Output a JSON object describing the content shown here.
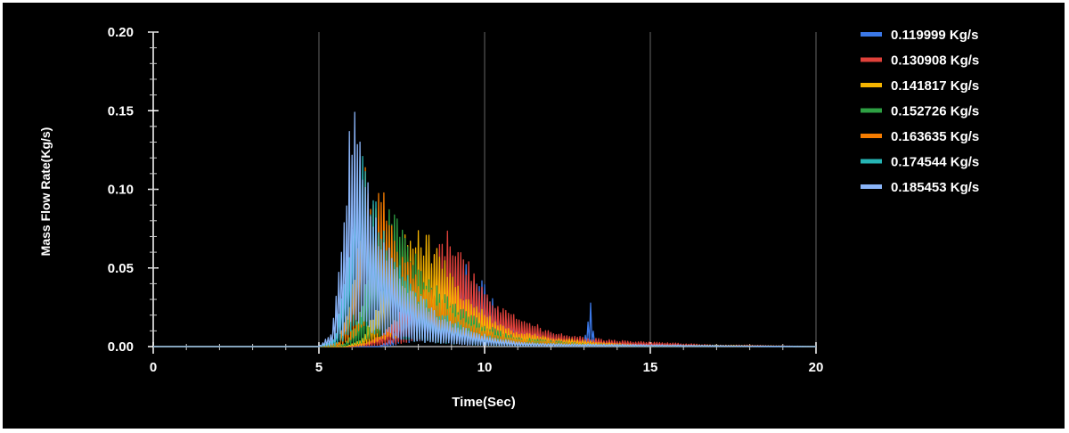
{
  "chart_data": {
    "type": "line",
    "xlabel": "Time(Sec)",
    "ylabel": "Mass Flow Rate(Kg/s)",
    "xlim": [
      0,
      20
    ],
    "ylim": [
      0,
      0.2
    ],
    "xticks": [
      "0",
      "5",
      "10",
      "15",
      "20"
    ],
    "yticks": [
      "0.00",
      "0.05",
      "0.10",
      "0.15",
      "0.20"
    ],
    "grid": "vertical gridlines at major x ticks",
    "legend_position": "right",
    "series": [
      {
        "name": "0.119999 Kg/s",
        "color": "#3b78e7",
        "x": [
          0,
          5,
          6,
          6.8,
          7.2,
          7.6,
          8.0,
          8.5,
          9.0,
          9.5,
          10.0,
          10.5,
          11.0,
          11.5,
          12.0,
          12.5,
          13.0,
          13.1,
          13.2,
          13.3,
          14.0,
          15.0,
          16.0,
          17.0,
          18.3,
          20
        ],
        "y": [
          0,
          0,
          0,
          0,
          0.005,
          0.025,
          0.04,
          0.05,
          0.06,
          0.055,
          0.04,
          0.025,
          0.015,
          0.012,
          0.009,
          0.006,
          0.005,
          0.012,
          0.033,
          0.004,
          0.002,
          0.002,
          0.001,
          0.001,
          0,
          0
        ]
      },
      {
        "name": "0.130908 Kg/s",
        "color": "#e0413a",
        "x": [
          0,
          5,
          6,
          6.5,
          7.0,
          7.5,
          8.0,
          8.5,
          8.8,
          9.0,
          9.3,
          9.6,
          10.0,
          10.5,
          11.0,
          11.5,
          12.0,
          13.0,
          14.0,
          15.0,
          16.0,
          17.0,
          18.0,
          20
        ],
        "y": [
          0,
          0,
          0,
          0.003,
          0.01,
          0.025,
          0.04,
          0.06,
          0.075,
          0.078,
          0.065,
          0.05,
          0.035,
          0.025,
          0.02,
          0.015,
          0.01,
          0.006,
          0.004,
          0.003,
          0.002,
          0.001,
          0.001,
          0
        ]
      },
      {
        "name": "0.141817 Kg/s",
        "color": "#f5b400",
        "x": [
          0,
          5,
          5.8,
          6.3,
          6.8,
          7.2,
          7.6,
          8.0,
          8.4,
          8.8,
          9.2,
          9.6,
          10.0,
          10.5,
          11.0,
          12.0,
          13.0,
          14.0,
          15.0,
          17.0,
          20
        ],
        "y": [
          0,
          0,
          0,
          0.005,
          0.03,
          0.06,
          0.075,
          0.08,
          0.07,
          0.055,
          0.04,
          0.03,
          0.022,
          0.015,
          0.01,
          0.006,
          0.004,
          0.002,
          0.001,
          0.001,
          0
        ]
      },
      {
        "name": "0.152726 Kg/s",
        "color": "#2ea043",
        "x": [
          0,
          5,
          5.8,
          6.2,
          6.6,
          7.0,
          7.3,
          7.6,
          8.0,
          8.5,
          9.0,
          9.5,
          10.0,
          10.5,
          11.0,
          12.0,
          13.0,
          15.0,
          20
        ],
        "y": [
          0,
          0,
          0.002,
          0.02,
          0.06,
          0.085,
          0.095,
          0.075,
          0.055,
          0.04,
          0.03,
          0.022,
          0.015,
          0.01,
          0.006,
          0.004,
          0.002,
          0.001,
          0
        ]
      },
      {
        "name": "0.163635 Kg/s",
        "color": "#f57c00",
        "x": [
          0,
          5,
          5.6,
          6.0,
          6.4,
          6.8,
          7.2,
          7.6,
          8.0,
          8.5,
          9.0,
          9.5,
          10.0,
          10.5,
          11.0,
          12.0,
          14.0,
          20
        ],
        "y": [
          0,
          0,
          0.003,
          0.04,
          0.12,
          0.11,
          0.08,
          0.06,
          0.045,
          0.035,
          0.025,
          0.018,
          0.012,
          0.008,
          0.005,
          0.003,
          0.001,
          0
        ]
      },
      {
        "name": "0.174544 Kg/s",
        "color": "#26b5b5",
        "x": [
          0,
          5,
          5.5,
          5.9,
          6.2,
          6.5,
          6.9,
          7.3,
          7.7,
          8.0,
          8.5,
          9.0,
          9.5,
          10.0,
          10.5,
          11.0,
          12.0,
          14.0,
          20
        ],
        "y": [
          0,
          0,
          0.005,
          0.07,
          0.145,
          0.11,
          0.08,
          0.06,
          0.045,
          0.035,
          0.025,
          0.018,
          0.012,
          0.008,
          0.005,
          0.003,
          0.002,
          0.001,
          0
        ]
      },
      {
        "name": "0.185453 Kg/s",
        "color": "#8ab4f8",
        "x": [
          0,
          5,
          5.4,
          5.7,
          5.9,
          6.1,
          6.3,
          6.6,
          7.0,
          7.4,
          7.8,
          8.2,
          8.6,
          9.0,
          9.5,
          10.0,
          10.5,
          11.0,
          12.0,
          20
        ],
        "y": [
          0,
          0,
          0.01,
          0.08,
          0.135,
          0.158,
          0.125,
          0.095,
          0.07,
          0.05,
          0.04,
          0.03,
          0.022,
          0.016,
          0.011,
          0.008,
          0.005,
          0.003,
          0.002,
          0
        ]
      }
    ]
  }
}
